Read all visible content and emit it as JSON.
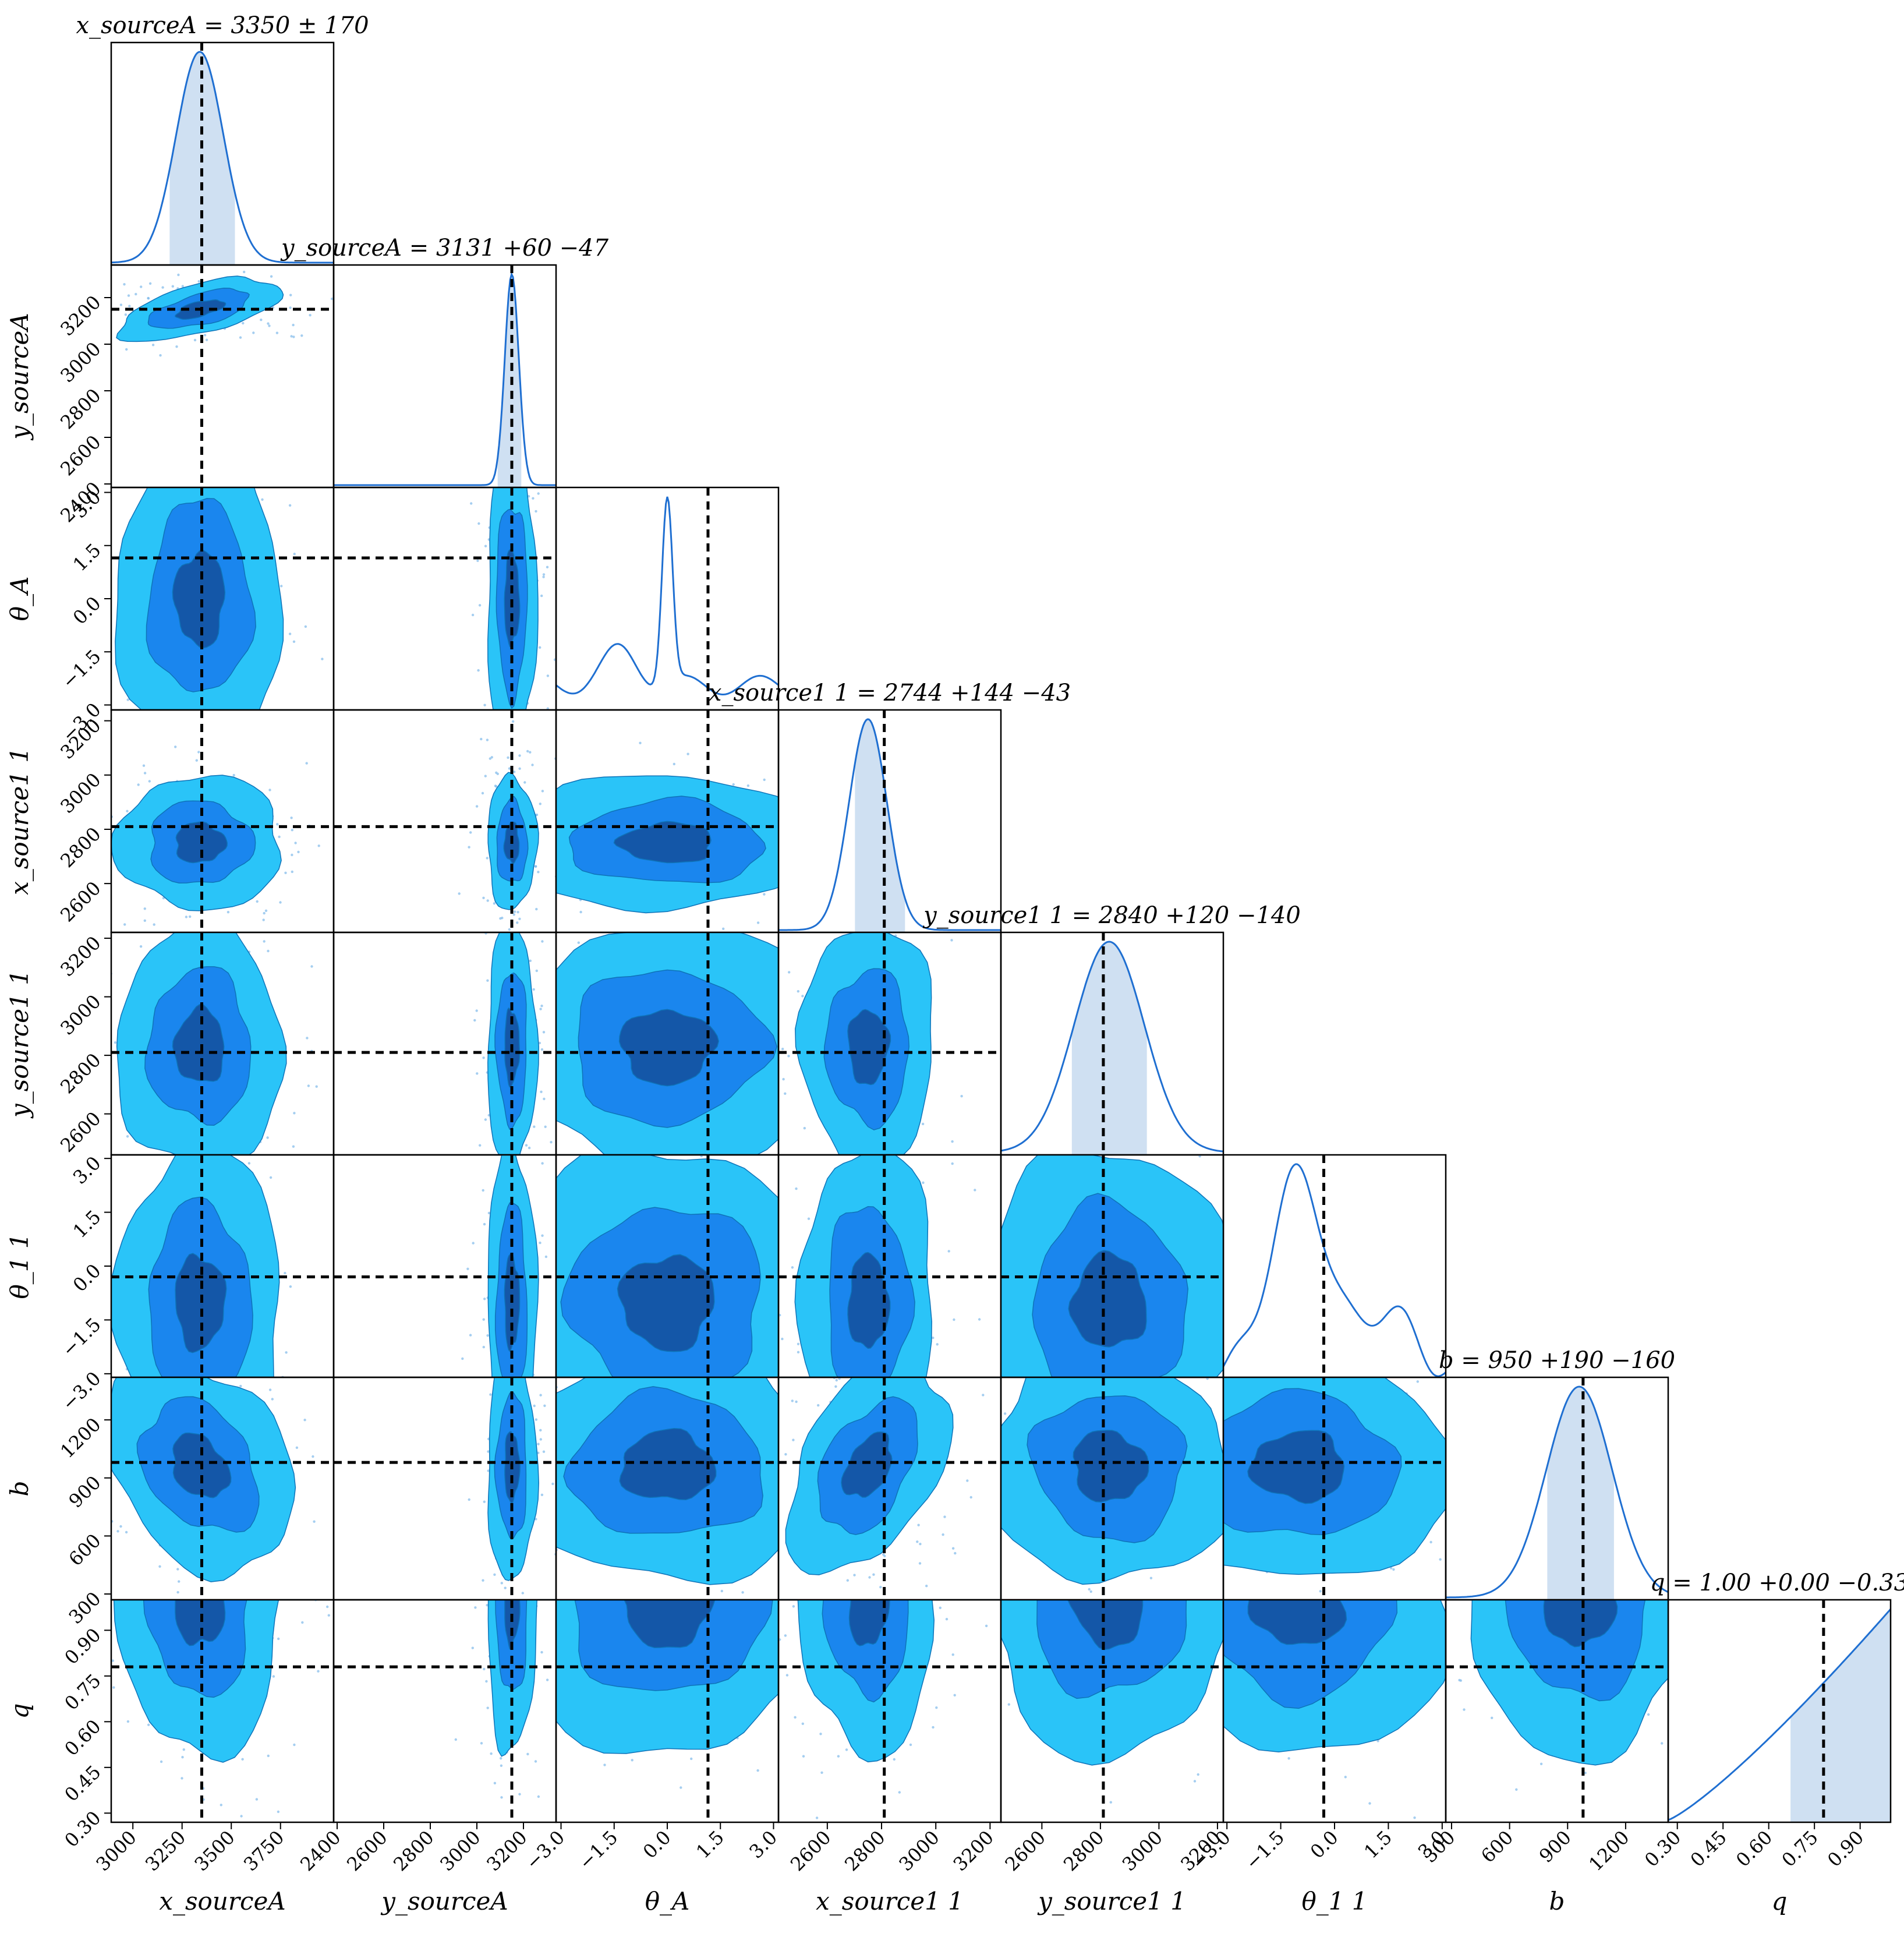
{
  "figure": {
    "type": "corner-plot",
    "colors": {
      "density_line": "#1f6fd1",
      "credible_fill": "#cfe0f2",
      "contour_outer": "#2ac4f8",
      "contour_mid": "#1a86ee",
      "contour_inner": "#1457a8",
      "contour_edge": "#0e73b8",
      "truth_line": "#000000",
      "samples": "#7fb9ea"
    }
  },
  "chart_data": {
    "type": "corner",
    "parameters": [
      {
        "name": "x_sourceA",
        "label": "x_sourceA",
        "title": "x_sourceA = 3350 ± 170",
        "median": 3350,
        "minus": 170,
        "plus": 170,
        "truth": 3350,
        "range": [
          2890,
          4020
        ],
        "ticks": [
          3000,
          3250,
          3500,
          3750
        ],
        "tick_labels": [
          "3000",
          "3250",
          "3500",
          "3750"
        ],
        "kde_peak": 3340,
        "kde_sd": 120,
        "ci": [
          3180,
          3520
        ]
      },
      {
        "name": "y_sourceA",
        "label": "y_sourceA",
        "title": "y_sourceA = 3131 +60 −47",
        "median": 3131,
        "minus": 47,
        "plus": 60,
        "truth": 3150,
        "range": [
          2385,
          3340
        ],
        "ticks": [
          2400,
          2600,
          2800,
          3000,
          3200
        ],
        "tick_labels": [
          "2400",
          "2600",
          "2800",
          "3000",
          "3200"
        ],
        "kde_peak": 3150,
        "kde_sd": 30,
        "ci": [
          3084,
          3191
        ]
      },
      {
        "name": "theta_A",
        "label": "θ_A",
        "title": "",
        "median": 0.0,
        "minus": 0,
        "plus": 0,
        "truth": 1.15,
        "range": [
          -3.14,
          3.14
        ],
        "ticks": [
          -3.0,
          -1.5,
          0.0,
          1.5,
          3.0
        ],
        "tick_labels": [
          "−3.0",
          "−1.5",
          "0.0",
          "1.5",
          "3.0"
        ],
        "kde_peak": 0.0,
        "kde_sd": 0.15,
        "ci": null
      },
      {
        "name": "x_source1",
        "label": "x_source1 1",
        "title": "x_source1 1 = 2744 +144 −43",
        "median": 2744,
        "minus": 43,
        "plus": 144,
        "truth": 2810,
        "range": [
          2420,
          3240
        ],
        "ticks": [
          2600,
          2800,
          3000,
          3200
        ],
        "tick_labels": [
          "2600",
          "2800",
          "3000",
          "3200"
        ],
        "kde_peak": 2750,
        "kde_sd": 70,
        "ci": [
          2701,
          2888
        ]
      },
      {
        "name": "y_source1",
        "label": "y_source1 1",
        "title": "y_source1 1 = 2840 +120 −140",
        "median": 2840,
        "minus": 140,
        "plus": 120,
        "truth": 2810,
        "range": [
          2460,
          3220
        ],
        "ticks": [
          2600,
          2800,
          3000,
          3200
        ],
        "tick_labels": [
          "2600",
          "2800",
          "3000",
          "3200"
        ],
        "kde_peak": 2830,
        "kde_sd": 120,
        "ci": [
          2700,
          2960
        ]
      },
      {
        "name": "theta_1",
        "label": "θ_1 1",
        "title": "",
        "median": -0.5,
        "minus": 0,
        "plus": 0,
        "truth": -0.3,
        "range": [
          -3.1,
          3.1
        ],
        "ticks": [
          -3.0,
          -1.5,
          0.0,
          1.5,
          3.0
        ],
        "tick_labels": [
          "−3.0",
          "−1.5",
          "0.0",
          "1.5",
          "3.0"
        ],
        "kde_peak": -1.0,
        "kde_sd": 0.8,
        "ci": null
      },
      {
        "name": "b",
        "label": "b",
        "title": "b = 950 +190 −160",
        "median": 950,
        "minus": 160,
        "plus": 190,
        "truth": 980,
        "range": [
          270,
          1420
        ],
        "ticks": [
          300,
          600,
          900,
          1200
        ],
        "tick_labels": [
          "300",
          "600",
          "900",
          "1200"
        ],
        "kde_peak": 960,
        "kde_sd": 170,
        "ci": [
          790,
          1140
        ]
      },
      {
        "name": "q",
        "label": "q",
        "title": "q = 1.00 +0.00 −0.33",
        "median": 1.0,
        "minus": 0.33,
        "plus": 0.0,
        "truth": 0.78,
        "range": [
          0.27,
          1.0
        ],
        "ticks": [
          0.3,
          0.45,
          0.6,
          0.75,
          0.9
        ],
        "tick_labels": [
          "0.30",
          "0.45",
          "0.60",
          "0.75",
          "0.90"
        ],
        "kde_peak": 1.0,
        "kde_sd": 0.3,
        "ci": [
          0.67,
          1.0
        ]
      }
    ],
    "contour_levels": [
      "outer",
      "mid",
      "inner"
    ],
    "grid": false,
    "legend": "none"
  }
}
